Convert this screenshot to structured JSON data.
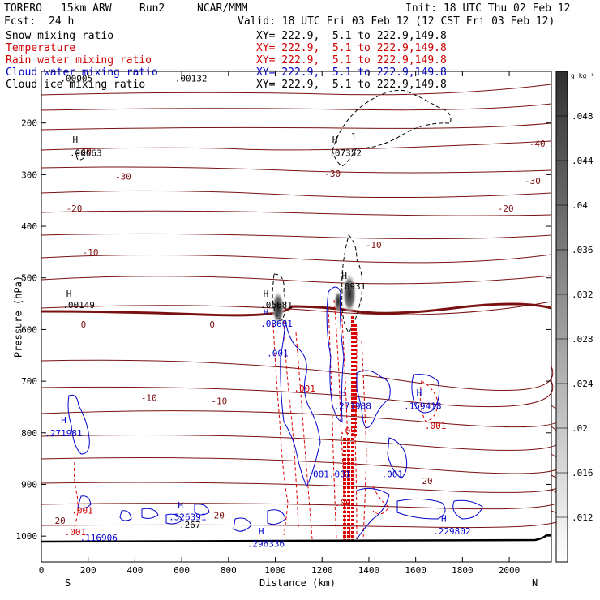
{
  "header": {
    "model": "TORERO",
    "resolution": "15km ARW",
    "run": "Run2",
    "org": "NCAR/MMM",
    "init": "Init: 18 UTC Thu 02 Feb 12",
    "fcst_label": "Fcst:",
    "fcst_value": "24 h",
    "valid": "Valid: 18 UTC Fri 03 Feb 12 (12 CST Fri 03 Feb 12)"
  },
  "fields": [
    {
      "name": "Snow mixing ratio",
      "xy": "XY= 222.9,  5.1 to 222.9,149.8",
      "color": "#000000"
    },
    {
      "name": "Temperature",
      "xy": "XY= 222.9,  5.1 to 222.9,149.8",
      "color": "#cc0000"
    },
    {
      "name": "Rain water mixing ratio",
      "xy": "XY= 222.9,  5.1 to 222.9,149.8",
      "color": "#cc0000"
    },
    {
      "name": "Cloud water mixing ratio",
      "xy": "XY= 222.9,  5.1 to 222.9,149.8",
      "color": "#0000cc"
    },
    {
      "name": "Cloud ice mixing ratio",
      "xy": "XY= 222.9,  5.1 to 222.9,149.8",
      "color": "#000000"
    }
  ],
  "chart_data": {
    "type": "contour cross-section",
    "xlabel": "Distance (km)",
    "ylabel": "Pressure (hPa)",
    "xlim": [
      0,
      2180
    ],
    "ylim": [
      1050,
      100
    ],
    "x_ticks": [
      0,
      200,
      400,
      600,
      800,
      1000,
      1200,
      1400,
      1600,
      1800,
      2000
    ],
    "y_ticks": [
      200,
      300,
      400,
      500,
      600,
      700,
      800,
      900,
      1000
    ],
    "x_end_labels": {
      "left": "S",
      "right": "N"
    },
    "colorbar": {
      "unit": "g kg⁻¹",
      "ticks": [
        ".012",
        ".016",
        ".02",
        ".024",
        ".028",
        ".032",
        ".036",
        ".04",
        ".044",
        ".048"
      ],
      "values": [
        0.012,
        0.016,
        0.02,
        0.024,
        0.028,
        0.032,
        0.036,
        0.04,
        0.044,
        0.048
      ],
      "range": [
        0.008,
        0.052
      ]
    },
    "isotherm_labels": [
      {
        "text": "-40",
        "x": 180,
        "p": 255
      },
      {
        "text": "-40",
        "x": 2120,
        "p": 240
      },
      {
        "text": "-30",
        "x": 350,
        "p": 303
      },
      {
        "text": "-30",
        "x": 1245,
        "p": 298
      },
      {
        "text": "-30",
        "x": 2100,
        "p": 312
      },
      {
        "text": "-20",
        "x": 140,
        "p": 365
      },
      {
        "text": "-20",
        "x": 1985,
        "p": 365
      },
      {
        "text": "-10",
        "x": 210,
        "p": 450
      },
      {
        "text": "-10",
        "x": 1420,
        "p": 436
      },
      {
        "text": "0",
        "x": 180,
        "p": 590
      },
      {
        "text": "0",
        "x": 730,
        "p": 590
      },
      {
        "text": "-10",
        "x": 460,
        "p": 732
      },
      {
        "text": "-10",
        "x": 760,
        "p": 738
      },
      {
        "text": "20",
        "x": 80,
        "p": 970
      },
      {
        "text": "20",
        "x": 760,
        "p": 960
      },
      {
        "text": "20",
        "x": 1650,
        "p": 893
      }
    ],
    "max_labels": [
      {
        "text": "H",
        "x": 145,
        "p": 232,
        "color": "#000000"
      },
      {
        "text": ".00663",
        "x": 190,
        "p": 258,
        "color": "#000000"
      },
      {
        "text": "H",
        "x": 1255,
        "p": 232,
        "color": "#000000"
      },
      {
        "text": ".07352",
        "x": 1300,
        "p": 258,
        "color": "#000000"
      },
      {
        "text": "1",
        "x": 1335,
        "p": 226,
        "color": "#000000"
      },
      {
        "text": "H",
        "x": 118,
        "p": 530,
        "color": "#000000"
      },
      {
        "text": ".00149",
        "x": 160,
        "p": 552,
        "color": "#000000"
      },
      {
        "text": "H",
        "x": 960,
        "p": 530,
        "color": "#000000"
      },
      {
        "text": ".06681",
        "x": 1005,
        "p": 552,
        "color": "#000000"
      },
      {
        "text": "H",
        "x": 960,
        "p": 566,
        "color": "#0000cc"
      },
      {
        "text": ".08601",
        "x": 1005,
        "p": 588,
        "color": "#0000cc"
      },
      {
        "text": "H",
        "x": 1295,
        "p": 496,
        "color": "#000000"
      },
      {
        "text": ".0931",
        "x": 1330,
        "p": 516,
        "color": "#000000"
      },
      {
        "text": ".001",
        "x": 1010,
        "p": 646,
        "color": "#0000cc"
      },
      {
        "text": ".001",
        "x": 1125,
        "p": 714,
        "color": "#cc0000"
      },
      {
        "text": "H",
        "x": 1290,
        "p": 722,
        "color": "#0000cc"
      },
      {
        "text": ".271988",
        "x": 1330,
        "p": 748,
        "color": "#0000cc"
      },
      {
        "text": "H",
        "x": 1615,
        "p": 722,
        "color": "#0000cc"
      },
      {
        "text": ".159418",
        "x": 1630,
        "p": 748,
        "color": "#0000cc"
      },
      {
        "text": ".001",
        "x": 1685,
        "p": 786,
        "color": "#cc0000"
      },
      {
        "text": ".09",
        "x": 1310,
        "p": 796,
        "color": "#cc0000"
      },
      {
        "text": "H",
        "x": 95,
        "p": 775,
        "color": "#0000cc"
      },
      {
        "text": ".271981",
        "x": 95,
        "p": 800,
        "color": "#0000cc"
      },
      {
        "text": ".001.001",
        "x": 1230,
        "p": 880,
        "color": "#0000cc"
      },
      {
        "text": ".001",
        "x": 1500,
        "p": 880,
        "color": "#0000cc"
      },
      {
        "text": ".001",
        "x": 1300,
        "p": 935,
        "color": "#cc0000"
      },
      {
        "text": ".001",
        "x": 175,
        "p": 950,
        "color": "#cc0000"
      },
      {
        "text": ".001",
        "x": 145,
        "p": 992,
        "color": "#cc0000"
      },
      {
        "text": "H",
        "x": 595,
        "p": 940,
        "color": "#0000cc"
      },
      {
        "text": ".326391",
        "x": 625,
        "p": 963,
        "color": "#0000cc"
      },
      {
        "text": ".267",
        "x": 635,
        "p": 978,
        "color": "#000000"
      },
      {
        "text": ".116906",
        "x": 245,
        "p": 1003,
        "color": "#0000cc"
      },
      {
        "text": "H",
        "x": 940,
        "p": 990,
        "color": "#0000cc"
      },
      {
        "text": ".296336",
        "x": 960,
        "p": 1015,
        "color": "#0000cc"
      },
      {
        "text": "H",
        "x": 1720,
        "p": 966,
        "color": "#0000cc"
      },
      {
        "text": ".229802",
        "x": 1755,
        "p": 990,
        "color": "#0000cc"
      },
      {
        "text": ".00132",
        "x": 640,
        "p": 113,
        "color": "#000000"
      },
      {
        "text": ".00005",
        "x": 150,
        "p": 113,
        "color": "#000000"
      }
    ]
  }
}
